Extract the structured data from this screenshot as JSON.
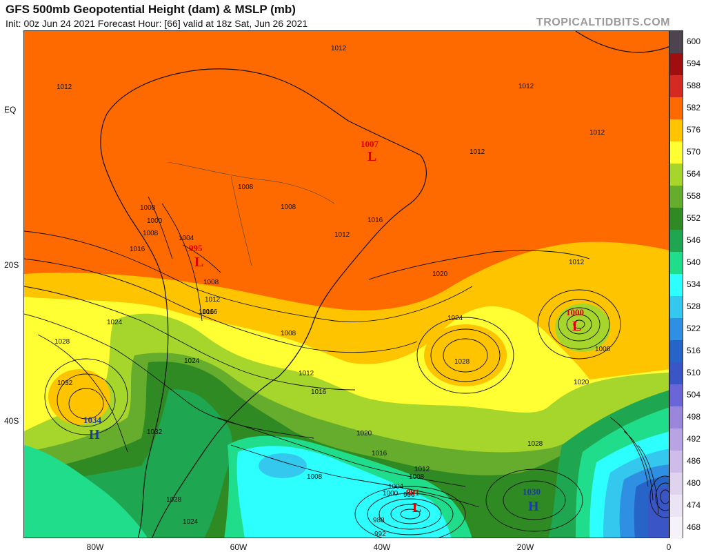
{
  "header": {
    "title": "GFS 500mb Geopotential Height (dam) & MSLP (mb)",
    "subtitle": "Init: 00z Jun 24 2021   Forecast Hour: [66]   valid at 18z Sat, Jun 26 2021",
    "brand": "TROPICALTIDBITS.COM"
  },
  "axes": {
    "latitudes": [
      "EQ",
      "20S",
      "40S"
    ],
    "longitudes": [
      "80W",
      "60W",
      "40W",
      "20W",
      "0"
    ]
  },
  "colorbar": {
    "levels": [
      "600",
      "594",
      "588",
      "582",
      "576",
      "570",
      "564",
      "558",
      "552",
      "546",
      "540",
      "534",
      "528",
      "522",
      "516",
      "510",
      "504",
      "498",
      "492",
      "486",
      "480",
      "474",
      "468"
    ],
    "colors": [
      "#4e4450",
      "#a00f0f",
      "#d42a22",
      "#ff6a00",
      "#ffc400",
      "#ffff33",
      "#a6d62b",
      "#66ad2d",
      "#2f8a23",
      "#1ea650",
      "#1fdd8a",
      "#2dffff",
      "#34c8ee",
      "#2f8fe2",
      "#2764c8",
      "#3a55c6",
      "#6a66d8",
      "#9a86da",
      "#b8a4e2",
      "#cfbde9",
      "#dfd3ee",
      "#ebe4f4",
      "#f6f2fa"
    ]
  },
  "pressure_centers": [
    {
      "type": "L",
      "value": "1007",
      "color": "#e00000"
    },
    {
      "type": "L",
      "value": "995",
      "color": "#e00000"
    },
    {
      "type": "L",
      "value": "1000",
      "color": "#e00000"
    },
    {
      "type": "L",
      "value": "991",
      "color": "#e00000"
    },
    {
      "type": "H",
      "value": "1034",
      "color": "#1a3aa8"
    },
    {
      "type": "H",
      "value": "1030",
      "color": "#1a3aa8"
    }
  ],
  "isobar_labels": [
    "1012",
    "1012",
    "1012",
    "1012",
    "1012",
    "1008",
    "1008",
    "1008",
    "1000",
    "1008",
    "1016",
    "1012",
    "1016",
    "1024",
    "1028",
    "1032",
    "1020",
    "1024",
    "1028",
    "1012",
    "1008",
    "1020",
    "1024",
    "1004",
    "1008",
    "1012",
    "1016",
    "1032",
    "1028",
    "1024",
    "1020",
    "1016",
    "1012",
    "1008",
    "1004",
    "1000",
    "996",
    "988",
    "992",
    "1008",
    "1028",
    "1012",
    "1008",
    "1016",
    "1016"
  ]
}
